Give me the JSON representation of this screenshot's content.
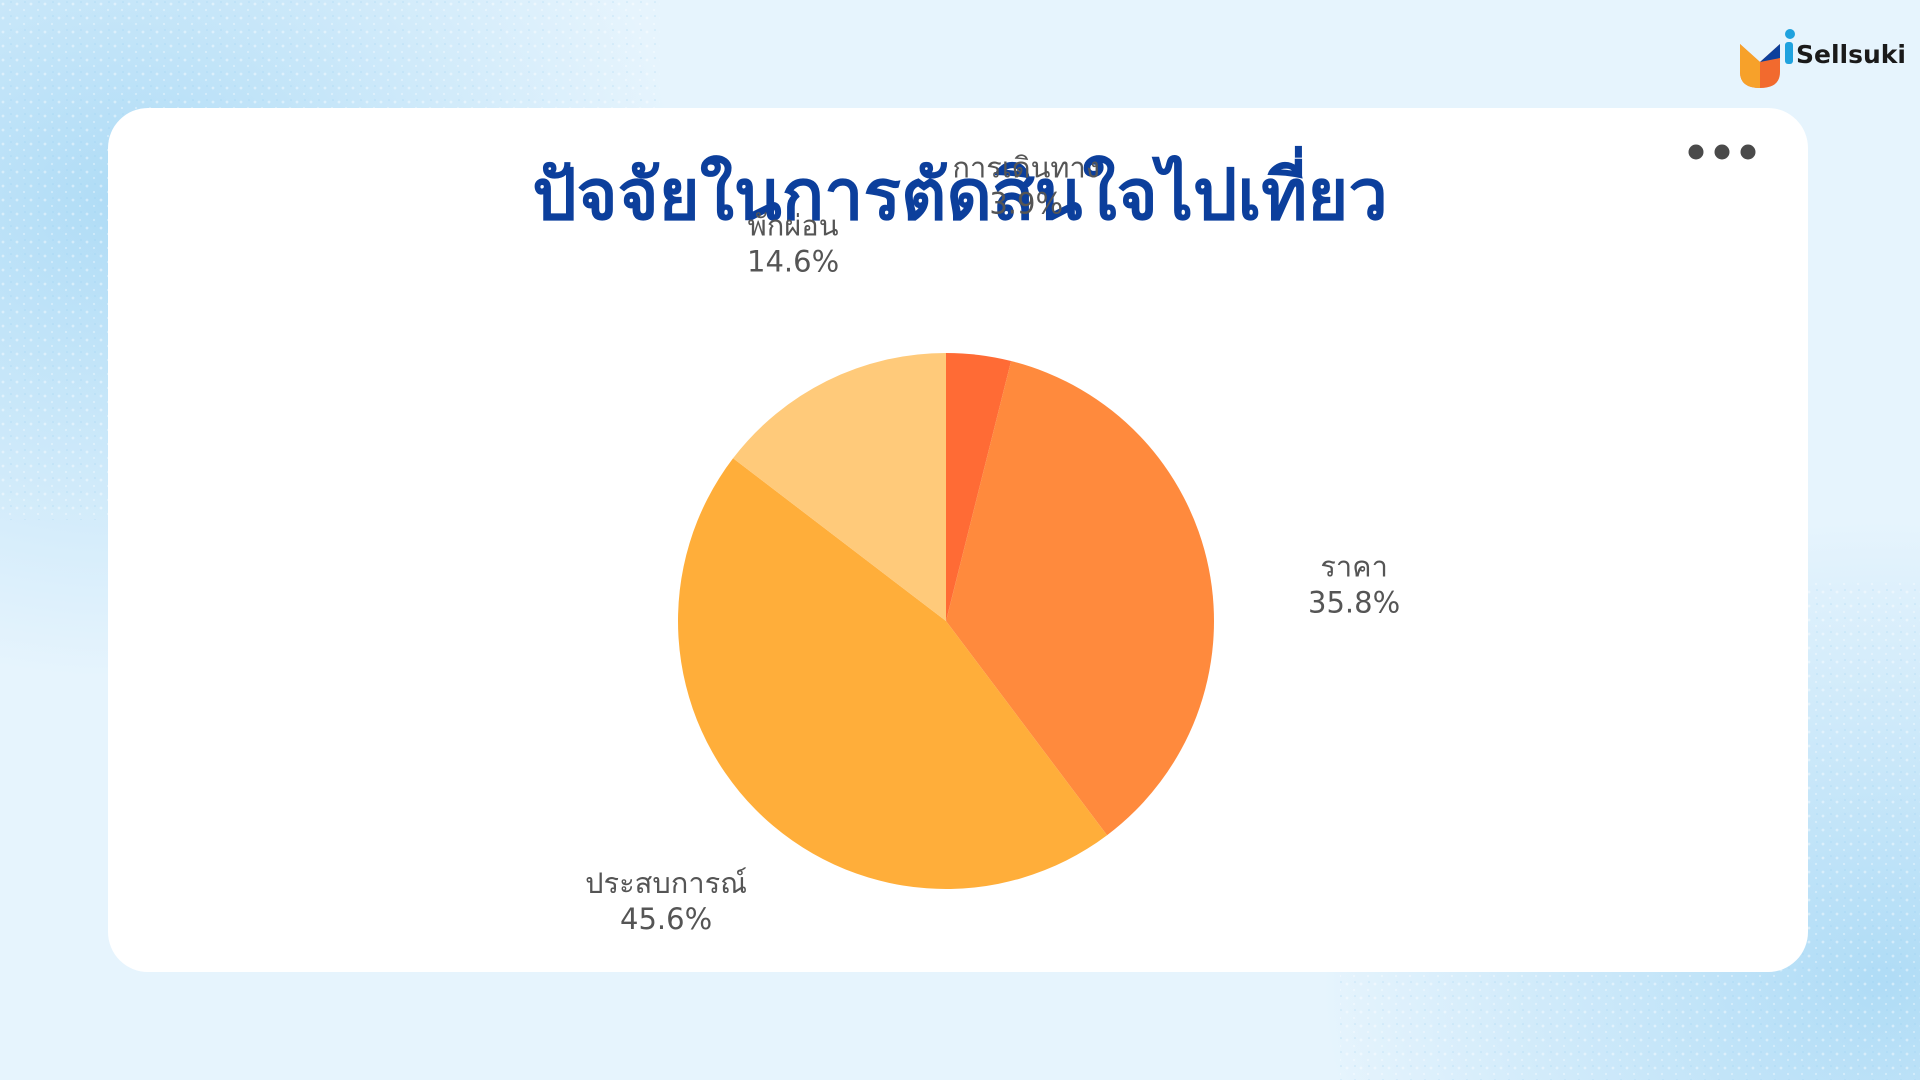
{
  "brand": {
    "name": "Sellsuki",
    "colors": {
      "navy": "#0c3f9c",
      "orange": "#f26a2e",
      "blue": "#1fa2de"
    }
  },
  "menu": {
    "icon": "more-horizontal-icon"
  },
  "chart_data": {
    "type": "pie",
    "title": "ปัจจัยในการตัดสินใจไปเที่ยว",
    "start_angle_deg": 0,
    "direction": "clockwise",
    "slices": [
      {
        "label": "การเดินทาง",
        "value": 3.9,
        "value_label": "3.9%",
        "color": "#ff6b35"
      },
      {
        "label": "ราคา",
        "value": 35.8,
        "value_label": "35.8%",
        "color": "#ff8a3d"
      },
      {
        "label": "ประสบการณ์",
        "value": 45.6,
        "value_label": "45.6%",
        "color": "#ffae3a"
      },
      {
        "label": "พักผ่อน",
        "value": 14.6,
        "value_label": "14.6%",
        "color": "#ffca7a"
      }
    ],
    "legend": "none"
  }
}
